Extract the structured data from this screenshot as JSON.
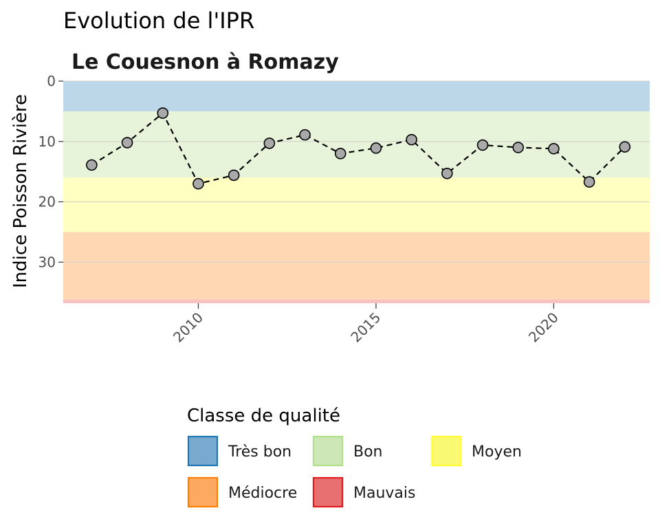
{
  "chart_data": {
    "type": "line",
    "title": "Evolution de l'IPR",
    "subtitle": "Le Couesnon à Romazy",
    "xlabel": "",
    "ylabel": "Indice Poisson Rivière",
    "x": [
      2007,
      2008,
      2009,
      2010,
      2011,
      2012,
      2013,
      2014,
      2015,
      2016,
      2017,
      2018,
      2019,
      2020,
      2021,
      2022
    ],
    "y": [
      13.9,
      10.2,
      5.3,
      17.0,
      15.6,
      10.3,
      8.9,
      12.0,
      11.1,
      9.7,
      15.3,
      10.6,
      11.0,
      11.2,
      16.7,
      10.9
    ],
    "xlim": [
      2006.2,
      2022.7
    ],
    "ylim": [
      0,
      36.8
    ],
    "y_reversed": true,
    "x_ticks": [
      "2010",
      "2015",
      "2020"
    ],
    "y_ticks": [
      "0",
      "10",
      "20",
      "30"
    ],
    "grid": true,
    "bands": [
      {
        "class": "Très bon",
        "from": 0,
        "to": 5,
        "color": "#bcd7e8"
      },
      {
        "class": "Bon",
        "from": 5,
        "to": 16,
        "color": "#e8f4da"
      },
      {
        "class": "Moyen",
        "from": 16,
        "to": 25,
        "color": "#feffc1"
      },
      {
        "class": "Médiocre",
        "from": 25,
        "to": 36.2,
        "color": "#fed8b2"
      },
      {
        "class": "Mauvais",
        "from": 36.2,
        "to": 36.8,
        "color": "#f8c1c1"
      }
    ],
    "legend": {
      "title": "Classe de qualité",
      "position": "bottom",
      "items": [
        {
          "label": "Très bon",
          "fill": "#78aad0",
          "stroke": "#1f78b4"
        },
        {
          "label": "Bon",
          "fill": "#cde8b6",
          "stroke": "#b2df8a"
        },
        {
          "label": "Moyen",
          "fill": "#f9fa72",
          "stroke": "#ffff33"
        },
        {
          "label": "Médiocre",
          "fill": "#fca962",
          "stroke": "#ff7f00"
        },
        {
          "label": "Mauvais",
          "fill": "#e87070",
          "stroke": "#e31a1c"
        }
      ]
    },
    "line_style": "dashed",
    "line_color": "#000000",
    "point_fill": "#a9a9a9",
    "point_stroke": "#000000",
    "gridline_color": "#cccccc"
  }
}
